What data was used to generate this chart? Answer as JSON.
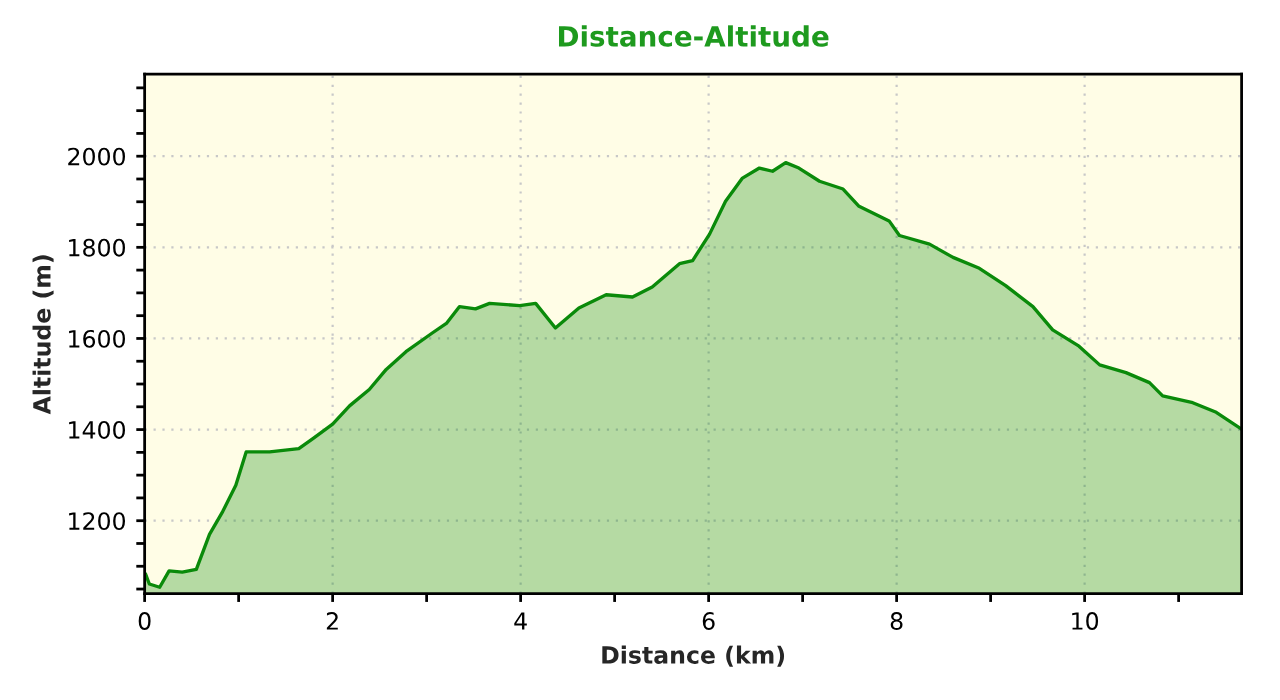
{
  "chart_data": {
    "type": "area",
    "title": "Distance-Altitude",
    "xlabel": "Distance (km)",
    "ylabel": "Altitude (m)",
    "xlim": [
      0,
      11.67
    ],
    "ylim": [
      1040,
      2180
    ],
    "xticks": [
      0,
      {
        "value": 1,
        "label": null
      },
      2,
      {
        "value": 3,
        "label": null
      },
      4,
      {
        "value": 5,
        "label": null
      },
      6,
      {
        "value": 7,
        "label": null
      },
      8,
      {
        "value": 9,
        "label": null
      },
      10,
      {
        "value": 11,
        "label": null
      }
    ],
    "yticks": [
      {
        "value": 1050,
        "label": null
      },
      {
        "value": 1100,
        "label": null
      },
      {
        "value": 1150,
        "label": null
      },
      1200,
      {
        "value": 1250,
        "label": null
      },
      {
        "value": 1300,
        "label": null
      },
      {
        "value": 1350,
        "label": null
      },
      1400,
      {
        "value": 1450,
        "label": null
      },
      {
        "value": 1500,
        "label": null
      },
      {
        "value": 1550,
        "label": null
      },
      1600,
      {
        "value": 1650,
        "label": null
      },
      {
        "value": 1700,
        "label": null
      },
      {
        "value": 1750,
        "label": null
      },
      1800,
      {
        "value": 1850,
        "label": null
      },
      {
        "value": 1900,
        "label": null
      },
      {
        "value": 1950,
        "label": null
      },
      2000,
      {
        "value": 2050,
        "label": null
      },
      {
        "value": 2100,
        "label": null
      },
      {
        "value": 2150,
        "label": null
      }
    ],
    "grid": true,
    "series": [
      {
        "color": "#0a8a0a",
        "x": [
          0.01,
          0.05,
          0.16,
          0.26,
          0.4,
          0.55,
          0.69,
          0.83,
          0.97,
          1.08,
          1.33,
          1.64,
          1.79,
          2.0,
          2.18,
          2.39,
          2.57,
          2.78,
          3.06,
          3.21,
          3.35,
          3.52,
          3.67,
          3.99,
          4.16,
          4.37,
          4.62,
          4.91,
          5.19,
          5.4,
          5.69,
          5.83,
          6.01,
          6.18,
          6.36,
          6.54,
          6.68,
          6.82,
          6.96,
          7.18,
          7.43,
          7.6,
          7.92,
          8.03,
          8.35,
          8.6,
          8.88,
          9.16,
          9.45,
          9.66,
          9.94,
          10.16,
          10.44,
          10.69,
          10.83,
          11.15,
          11.4,
          11.67
        ],
        "values": [
          1083,
          1061,
          1054,
          1090,
          1087,
          1093,
          1170,
          1220,
          1278,
          1351,
          1351,
          1358,
          1380,
          1412,
          1452,
          1488,
          1532,
          1571,
          1612,
          1633,
          1670,
          1665,
          1677,
          1672,
          1677,
          1623,
          1667,
          1696,
          1691,
          1713,
          1764,
          1771,
          1829,
          1901,
          1952,
          1974,
          1967,
          1986,
          1974,
          1945,
          1928,
          1890,
          1858,
          1826,
          1807,
          1778,
          1754,
          1716,
          1670,
          1619,
          1583,
          1542,
          1525,
          1503,
          1474,
          1459,
          1438,
          1401
        ]
      }
    ]
  }
}
